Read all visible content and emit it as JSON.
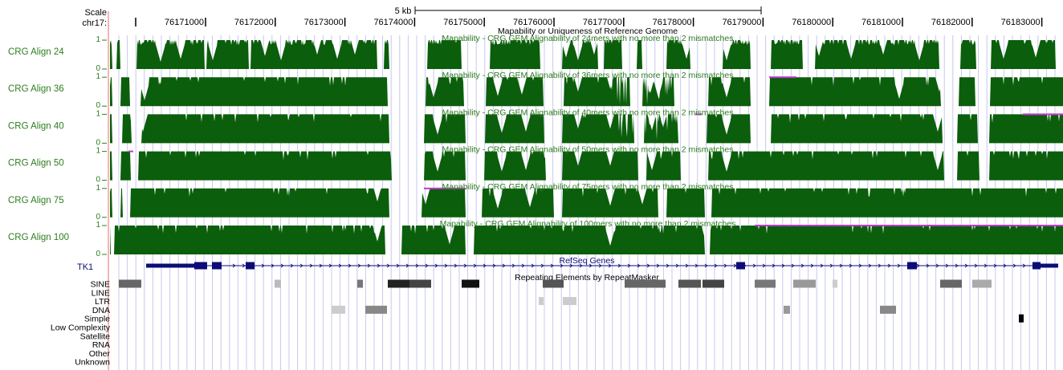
{
  "scale": {
    "label": "Scale",
    "chrom_label": "chr17:",
    "scale_bar_label": "5 kb",
    "positions": [
      "76171000",
      "76172000",
      "76173000",
      "76174000",
      "76175000",
      "76176000",
      "76177000",
      "76178000",
      "76179000",
      "76180000",
      "76181000",
      "76182000",
      "76183000"
    ]
  },
  "group_title": "Mapability or Uniqueness of Reference Genome",
  "tracks": [
    {
      "name": "CRG Align 24",
      "ymax": "1",
      "ymin": "0",
      "title": "Mapability - CRG GEM Alignability of 24mers with no more than 2 mismatches"
    },
    {
      "name": "CRG Align 36",
      "ymax": "1",
      "ymin": "0",
      "title": "Mapability - CRG GEM Alignability of 36mers with no more than 2 mismatches"
    },
    {
      "name": "CRG Align 40",
      "ymax": "1",
      "ymin": "0",
      "title": "Mapability - CRG GEM Alignability of 40mers with no more than 2 mismatches"
    },
    {
      "name": "CRG Align 50",
      "ymax": "1",
      "ymin": "0",
      "title": "Mapability - CRG GEM Alignability of 50mers with no more than 2 mismatches"
    },
    {
      "name": "CRG Align 75",
      "ymax": "1",
      "ymin": "0",
      "title": "Mapability - CRG GEM Alignability of 75mers with no more than 2 mismatches"
    },
    {
      "name": "CRG Align 100",
      "ymax": "1",
      "ymin": "0",
      "title": "Mapability - CRG GEM Alignability of 100mers with no more than 2 mismatches"
    }
  ],
  "refseq": {
    "gene_label": "TK1",
    "title": "RefSeq Genes"
  },
  "repeats": {
    "title": "Repeating Elements by RepeatMasker",
    "classes": [
      "SINE",
      "LINE",
      "LTR",
      "DNA",
      "Simple",
      "Low Complexity",
      "Satellite",
      "RNA",
      "Other",
      "Unknown"
    ]
  },
  "colors": {
    "signal": "#0b5e0b",
    "track_label": "#2e7d1f",
    "refseq": "#0c0c78",
    "gridline": "#c8c8f0",
    "left_margin": "#f4b6b6",
    "overflow": "#c03ad0"
  }
}
